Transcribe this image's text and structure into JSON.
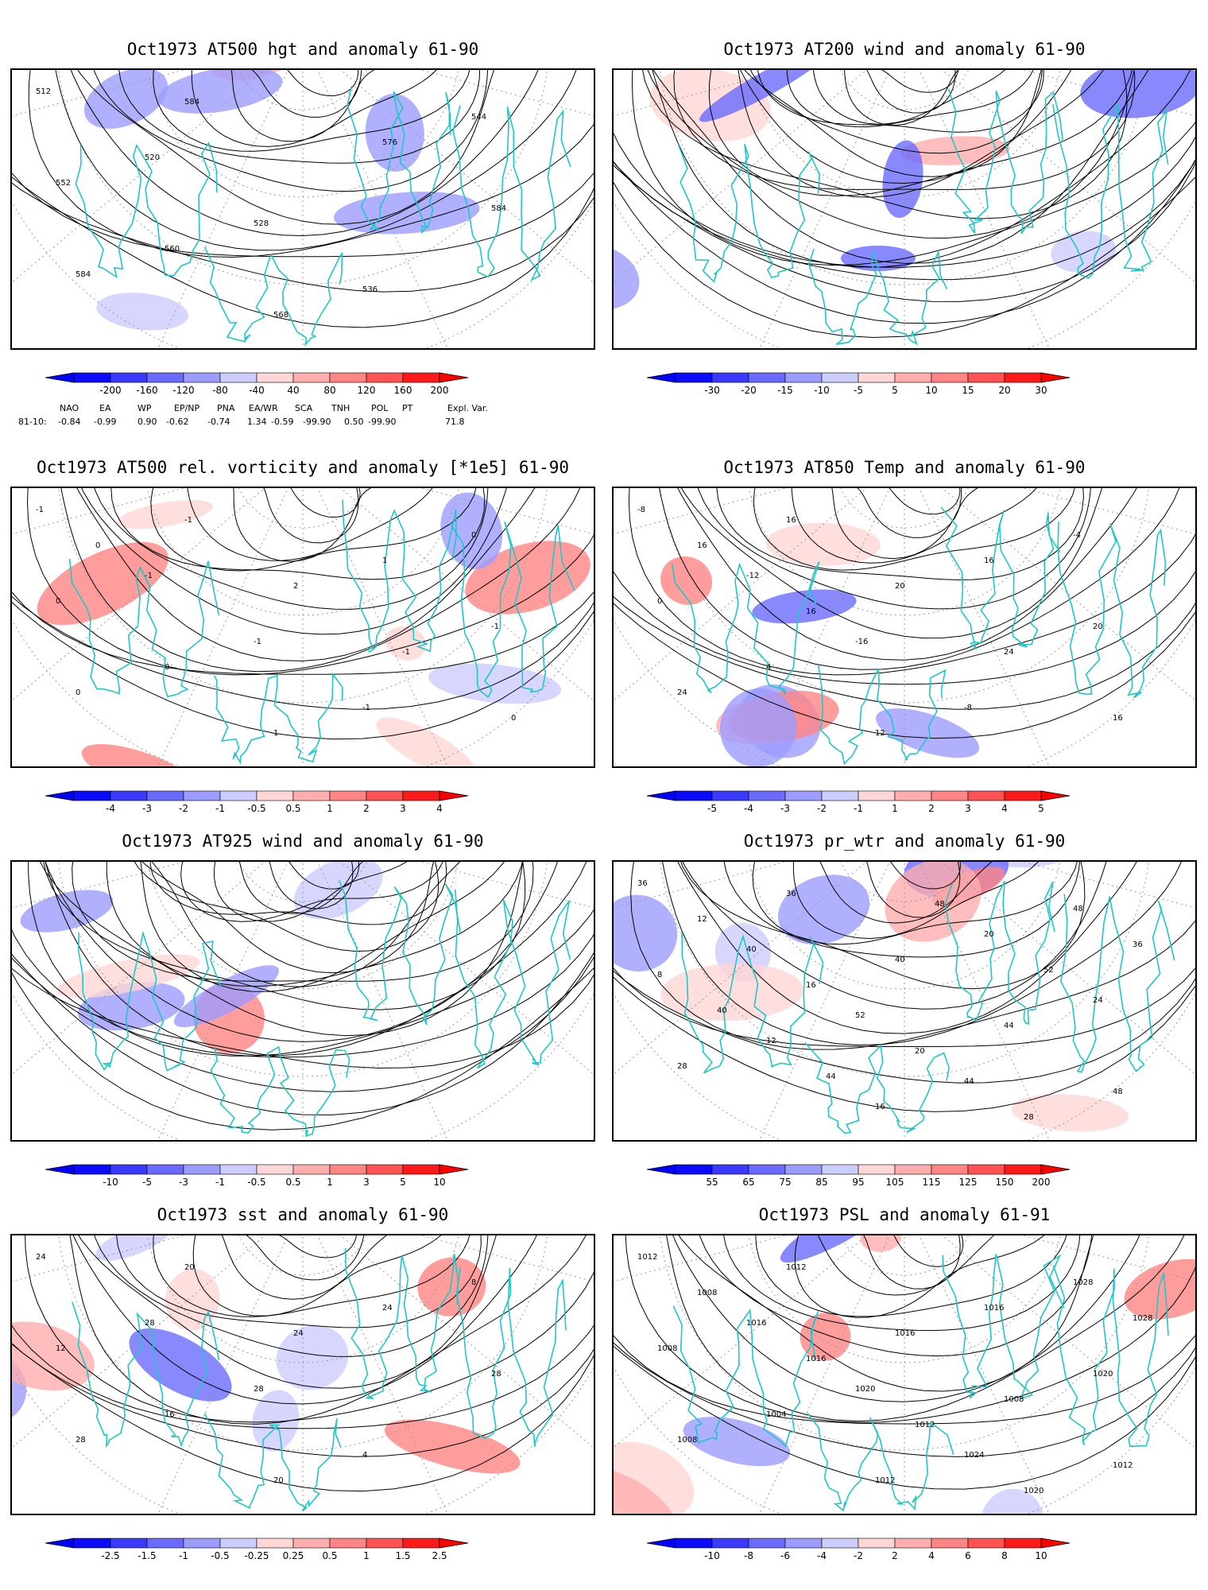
{
  "panels": [
    {
      "title": "Oct1973 AT500 hgt and anomaly 61-90",
      "field": "contour",
      "contour_labels": [
        "512",
        "520",
        "528",
        "536",
        "544",
        "552",
        "560",
        "568",
        "576",
        "584",
        "584",
        "584"
      ],
      "colorbar": [
        "-200",
        "-160",
        "-120",
        "-80",
        "-40",
        "40",
        "80",
        "120",
        "160",
        "200"
      ]
    },
    {
      "title": "Oct1973 AT200 wind and anomaly 61-90",
      "field": "streamline",
      "contour_labels": [],
      "colorbar": [
        "-30",
        "-20",
        "-15",
        "-10",
        "-5",
        "5",
        "10",
        "15",
        "20",
        "30"
      ]
    },
    {
      "title": "Oct1973 AT500 rel. vorticity and anomaly [*1e5] 61-90",
      "field": "contour",
      "contour_labels": [
        "-1",
        "-1",
        "-1",
        "-1",
        "0",
        "0",
        "0",
        "1",
        "1",
        "-1",
        "0",
        "-1",
        "2",
        "-1",
        "0",
        "0"
      ],
      "colorbar": [
        "-4",
        "-3",
        "-2",
        "-1",
        "-0.5",
        "0.5",
        "1",
        "2",
        "3",
        "4"
      ]
    },
    {
      "title": "Oct1973 AT850 Temp and anomaly 61-90",
      "field": "contour",
      "contour_labels": [
        "-8",
        "-12",
        "-16",
        "-8",
        "-4",
        "0",
        "4",
        "12",
        "16",
        "20",
        "24",
        "16",
        "20",
        "24",
        "16",
        "16",
        "16"
      ],
      "colorbar": [
        "-5",
        "-4",
        "-3",
        "-2",
        "-1",
        "1",
        "2",
        "3",
        "4",
        "5"
      ]
    },
    {
      "title": "Oct1973 AT925 wind and anomaly 61-90",
      "field": "streamline",
      "contour_labels": [],
      "colorbar": [
        "-10",
        "-5",
        "-3",
        "-1",
        "-0.5",
        "0.5",
        "1",
        "3",
        "5",
        "10"
      ]
    },
    {
      "title": "Oct1973 pr_wtr and anomaly 61-90",
      "field": "contour",
      "contour_labels": [
        "36",
        "40",
        "52",
        "44",
        "48",
        "8",
        "12",
        "16",
        "20",
        "24",
        "28",
        "36",
        "40",
        "44",
        "48",
        "12",
        "16",
        "20",
        "28",
        "36",
        "40",
        "44",
        "48",
        "52"
      ],
      "colorbar": [
        "55",
        "65",
        "75",
        "85",
        "95",
        "105",
        "115",
        "125",
        "150",
        "200"
      ]
    },
    {
      "title": "Oct1973 sst and anomaly 61-90",
      "field": "contour",
      "contour_labels": [
        "24",
        "28",
        "28",
        "4",
        "8",
        "12",
        "16",
        "20",
        "24",
        "28",
        "28",
        "20",
        "24"
      ],
      "colorbar": [
        "-2.5",
        "-1.5",
        "-1",
        "-0.5",
        "-0.25",
        "0.25",
        "0.5",
        "1",
        "1.5",
        "2.5"
      ]
    },
    {
      "title": "Oct1973 PSL and anomaly 61-91",
      "field": "contour",
      "contour_labels": [
        "1012",
        "1016",
        "1020",
        "1024",
        "1028",
        "1008",
        "1004",
        "1012",
        "1016",
        "1020",
        "1008",
        "1012",
        "1016",
        "1008",
        "1012",
        "1008",
        "1016",
        "1012",
        "1020",
        "1028"
      ],
      "colorbar": [
        "-10",
        "-8",
        "-6",
        "-4",
        "-2",
        "2",
        "4",
        "6",
        "8",
        "10"
      ]
    }
  ],
  "teleconnections": {
    "headers": [
      "NAO",
      "EA",
      "WP",
      "EP/NP",
      "PNA",
      "EA/WR",
      "SCA",
      "TNH",
      "POL",
      "PT",
      "Expl. Var."
    ],
    "row_label": "81-10:",
    "values": [
      "-0.84",
      "-0.99",
      "0.90",
      "-0.62",
      "-0.74",
      "1.34",
      "-0.59",
      "-99.90",
      "0.50",
      "-99.90",
      "71.8"
    ]
  },
  "colors": {
    "coastline": "#1fc7c7",
    "neg_scale": [
      "#0a0aff",
      "#3a3aff",
      "#6a6aff",
      "#9c9cff",
      "#ccccff"
    ],
    "pos_scale": [
      "#ffd6d6",
      "#ffadad",
      "#ff8484",
      "#ff5252",
      "#ff1a1a"
    ],
    "contour": "#000000",
    "gridline": "#9a9a9a"
  }
}
